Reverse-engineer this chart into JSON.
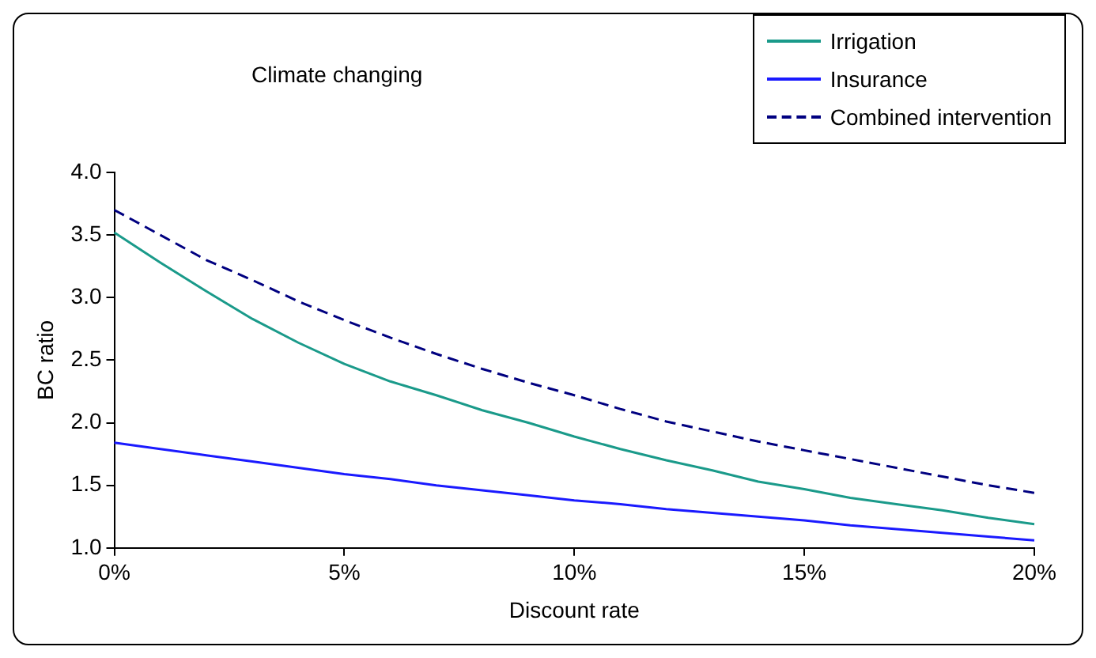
{
  "chart_data": {
    "type": "line",
    "title": "Climate changing",
    "xlabel": "Discount rate",
    "ylabel": "BC ratio",
    "x": [
      0,
      1,
      2,
      3,
      4,
      5,
      6,
      7,
      8,
      9,
      10,
      11,
      12,
      13,
      14,
      15,
      16,
      17,
      18,
      19,
      20
    ],
    "series": [
      {
        "name": "Irrigation",
        "color": "#1a9a8a",
        "values": [
          3.52,
          3.28,
          3.05,
          2.83,
          2.64,
          2.47,
          2.33,
          2.22,
          2.1,
          2.0,
          1.89,
          1.79,
          1.7,
          1.62,
          1.53,
          1.47,
          1.4,
          1.35,
          1.3,
          1.24,
          1.19
        ]
      },
      {
        "name": "Insurance",
        "color": "#1a1aff",
        "values": [
          1.84,
          1.79,
          1.74,
          1.69,
          1.64,
          1.59,
          1.55,
          1.5,
          1.46,
          1.42,
          1.38,
          1.35,
          1.31,
          1.28,
          1.25,
          1.22,
          1.18,
          1.15,
          1.12,
          1.09,
          1.06
        ]
      },
      {
        "name": "Combined intervention",
        "color": "#000080",
        "line_style": "dashed",
        "values": [
          3.7,
          3.5,
          3.3,
          3.14,
          2.97,
          2.82,
          2.68,
          2.55,
          2.43,
          2.32,
          2.22,
          2.11,
          2.01,
          1.93,
          1.85,
          1.78,
          1.71,
          1.64,
          1.57,
          1.5,
          1.44
        ]
      }
    ],
    "xlim": [
      0,
      20
    ],
    "xticks": [
      {
        "value": 0,
        "label": "0%"
      },
      {
        "value": 5,
        "label": "5%"
      },
      {
        "value": 10,
        "label": "10%"
      },
      {
        "value": 15,
        "label": "15%"
      },
      {
        "value": 20,
        "label": "20%"
      }
    ],
    "ylim": [
      1.0,
      4.0
    ],
    "yticks": [
      {
        "value": 1,
        "label": "1.0"
      },
      {
        "value": 1.5,
        "label": "1.5"
      },
      {
        "value": 2,
        "label": "2.0"
      },
      {
        "value": 2.5,
        "label": "2.5"
      },
      {
        "value": 3,
        "label": "3.0"
      },
      {
        "value": 3.5,
        "label": "3.5"
      },
      {
        "value": 4,
        "label": "4.0"
      }
    ],
    "grid": false,
    "legend": "top right",
    "marker": "none"
  }
}
